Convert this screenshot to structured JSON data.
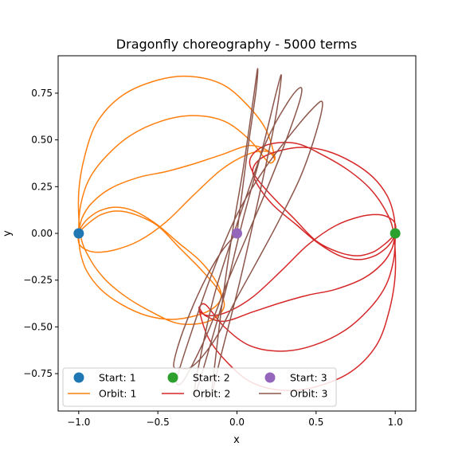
{
  "chart_data": {
    "type": "line",
    "title": "Dragonfly choreography - 5000 terms",
    "xlabel": "x",
    "ylabel": "y",
    "xlim": [
      -1.13,
      1.13
    ],
    "ylim": [
      -0.95,
      0.95
    ],
    "xticks": [
      -1.0,
      -0.5,
      0.0,
      0.5,
      1.0
    ],
    "yticks": [
      -0.75,
      -0.5,
      -0.25,
      0.0,
      0.25,
      0.5,
      0.75
    ],
    "xtick_labels": [
      "−1.0",
      "−0.5",
      "0.0",
      "0.5",
      "1.0"
    ],
    "ytick_labels": [
      "−0.75",
      "−0.50",
      "−0.25",
      "0.00",
      "0.25",
      "0.50",
      "0.75"
    ],
    "grid": false,
    "legend_position": "lower-center",
    "starts": [
      {
        "name": "Start: 1",
        "x": -1.0,
        "y": 0.0,
        "color": "#1f77b4"
      },
      {
        "name": "Start: 2",
        "x": 1.0,
        "y": 0.0,
        "color": "#2ca02c"
      },
      {
        "name": "Start: 3",
        "x": 0.0,
        "y": 0.0,
        "color": "#9467bd"
      }
    ],
    "series": [
      {
        "name": "Orbit: 1",
        "color": "#ff7f0e",
        "x": [
          -1.0,
          -0.98,
          -0.92,
          -0.8,
          -0.62,
          -0.45,
          -0.28,
          -0.1,
          0.08,
          0.2,
          0.24,
          0.18,
          0.05,
          -0.1,
          -0.3,
          -0.5,
          -0.72,
          -0.88,
          -0.96,
          -1.0,
          -0.99,
          -0.94,
          -0.84,
          -0.7,
          -0.54,
          -0.38,
          -0.22,
          -0.12,
          -0.08,
          -0.12,
          -0.22,
          -0.36,
          -0.5,
          -0.64,
          -0.76,
          -0.86,
          -0.93,
          -0.97,
          -1.0,
          -1.0,
          -0.97,
          -0.9,
          -0.78,
          -0.62,
          -0.45,
          -0.28,
          -0.1,
          0.06,
          0.18,
          0.24,
          0.2,
          0.08,
          -0.08,
          -0.28,
          -0.48,
          -0.68,
          -0.84,
          -0.94,
          -0.99,
          -1.0,
          -0.99,
          -0.95,
          -0.86,
          -0.73,
          -0.57,
          -0.41,
          -0.26,
          -0.15,
          -0.1,
          -0.13,
          -0.23,
          -0.37,
          -0.51,
          -0.65,
          -0.77,
          -0.87,
          -0.94,
          -0.98,
          -1.0
        ],
        "y": [
          0.0,
          0.08,
          0.16,
          0.24,
          0.3,
          0.33,
          0.37,
          0.42,
          0.47,
          0.44,
          0.4,
          0.56,
          0.7,
          0.8,
          0.84,
          0.82,
          0.74,
          0.6,
          0.42,
          0.22,
          0.0,
          -0.12,
          -0.24,
          -0.34,
          -0.42,
          -0.48,
          -0.48,
          -0.44,
          -0.38,
          -0.3,
          -0.2,
          -0.08,
          0.04,
          0.1,
          0.12,
          0.1,
          0.06,
          0.03,
          0.0,
          -0.05,
          -0.08,
          -0.1,
          -0.09,
          -0.04,
          0.06,
          0.2,
          0.34,
          0.42,
          0.44,
          0.41,
          0.38,
          0.5,
          0.6,
          0.63,
          0.6,
          0.52,
          0.4,
          0.28,
          0.14,
          0.0,
          -0.1,
          -0.2,
          -0.3,
          -0.38,
          -0.44,
          -0.46,
          -0.44,
          -0.4,
          -0.34,
          -0.26,
          -0.15,
          -0.05,
          0.05,
          0.12,
          0.14,
          0.12,
          0.08,
          0.04,
          0.0
        ]
      },
      {
        "name": "Orbit: 2",
        "color": "#d62728",
        "x": [
          1.0,
          0.98,
          0.92,
          0.8,
          0.62,
          0.45,
          0.28,
          0.1,
          -0.08,
          -0.2,
          -0.24,
          -0.18,
          -0.05,
          0.1,
          0.3,
          0.5,
          0.72,
          0.88,
          0.96,
          1.0,
          0.99,
          0.94,
          0.84,
          0.7,
          0.54,
          0.38,
          0.22,
          0.12,
          0.08,
          0.12,
          0.22,
          0.36,
          0.5,
          0.64,
          0.76,
          0.86,
          0.93,
          0.97,
          1.0,
          1.0,
          0.97,
          0.9,
          0.78,
          0.62,
          0.45,
          0.28,
          0.1,
          -0.06,
          -0.18,
          -0.24,
          -0.2,
          -0.08,
          0.08,
          0.28,
          0.48,
          0.68,
          0.84,
          0.94,
          0.99,
          1.0,
          0.99,
          0.95,
          0.86,
          0.73,
          0.57,
          0.41,
          0.26,
          0.15,
          0.1,
          0.13,
          0.23,
          0.37,
          0.51,
          0.65,
          0.77,
          0.87,
          0.94,
          0.98,
          1.0
        ],
        "y": [
          0.0,
          -0.08,
          -0.16,
          -0.24,
          -0.3,
          -0.33,
          -0.37,
          -0.42,
          -0.47,
          -0.44,
          -0.4,
          -0.56,
          -0.7,
          -0.8,
          -0.84,
          -0.82,
          -0.74,
          -0.6,
          -0.42,
          -0.22,
          0.0,
          0.12,
          0.24,
          0.34,
          0.42,
          0.48,
          0.48,
          0.44,
          0.38,
          0.3,
          0.2,
          0.08,
          -0.04,
          -0.1,
          -0.12,
          -0.1,
          -0.06,
          -0.03,
          0.0,
          0.05,
          0.08,
          0.1,
          0.09,
          0.04,
          -0.06,
          -0.2,
          -0.34,
          -0.42,
          -0.44,
          -0.41,
          -0.38,
          -0.5,
          -0.6,
          -0.63,
          -0.6,
          -0.52,
          -0.4,
          -0.28,
          -0.14,
          0.0,
          0.1,
          0.2,
          0.3,
          0.38,
          0.44,
          0.46,
          0.44,
          0.4,
          0.34,
          0.26,
          0.15,
          0.05,
          -0.05,
          -0.12,
          -0.14,
          -0.12,
          -0.08,
          -0.04,
          0.0
        ]
      },
      {
        "name": "Orbit: 3",
        "color": "#8c564b",
        "x": [
          0.0,
          0.06,
          0.12,
          0.13,
          0.1,
          0.04,
          -0.03,
          -0.09,
          -0.14,
          -0.16,
          -0.1,
          0.02,
          0.14,
          0.24,
          0.28,
          0.25,
          0.16,
          0.04,
          -0.07,
          -0.17,
          -0.24,
          -0.27,
          -0.24,
          -0.14,
          0.02,
          0.18,
          0.32,
          0.4,
          0.4,
          0.32,
          0.2,
          0.07,
          -0.06,
          -0.18,
          -0.28,
          -0.35,
          -0.38,
          -0.3,
          -0.16,
          0.0,
          0.17,
          0.33,
          0.47,
          0.54,
          0.5,
          0.4,
          0.26,
          0.12,
          -0.01,
          -0.12,
          -0.22,
          -0.3,
          -0.36,
          -0.4,
          -0.34,
          -0.22,
          -0.1,
          0.0
        ],
        "y": [
          0.0,
          0.4,
          0.76,
          0.88,
          0.7,
          0.35,
          0.0,
          -0.35,
          -0.7,
          -0.86,
          -0.65,
          -0.25,
          0.2,
          0.6,
          0.84,
          0.76,
          0.45,
          0.08,
          -0.3,
          -0.6,
          -0.8,
          -0.86,
          -0.7,
          -0.32,
          0.1,
          0.48,
          0.7,
          0.78,
          0.72,
          0.52,
          0.26,
          0.0,
          -0.26,
          -0.52,
          -0.7,
          -0.8,
          -0.78,
          -0.56,
          -0.22,
          0.1,
          0.34,
          0.52,
          0.66,
          0.7,
          0.54,
          0.3,
          0.06,
          -0.16,
          -0.36,
          -0.54,
          -0.66,
          -0.72,
          -0.72,
          -0.7,
          -0.52,
          -0.28,
          -0.1,
          0.0
        ]
      }
    ]
  }
}
